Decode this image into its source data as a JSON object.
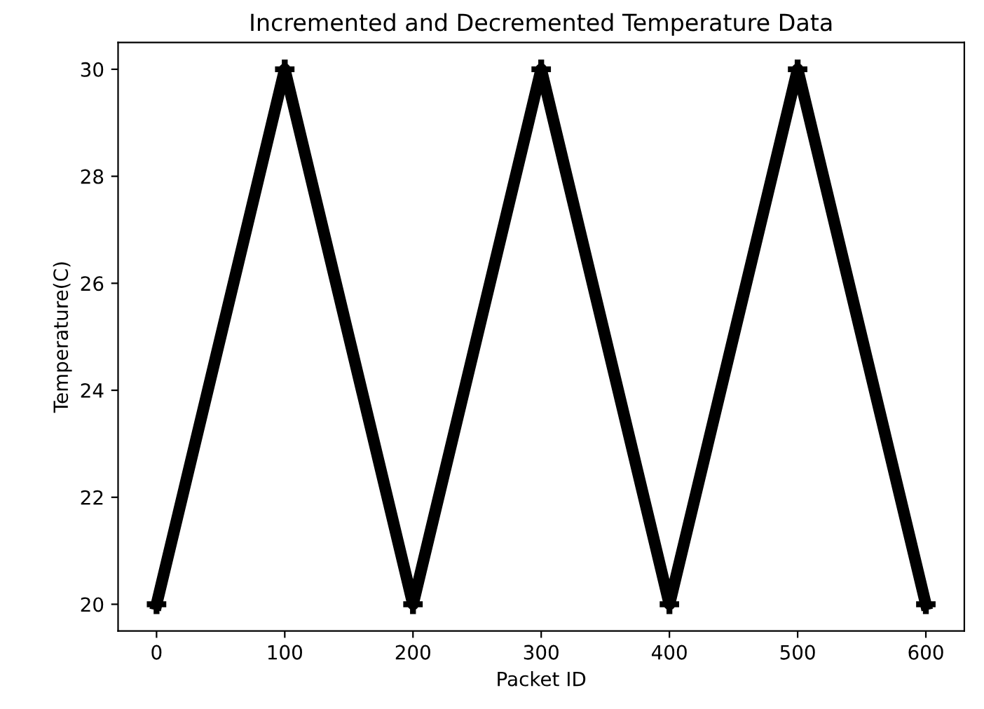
{
  "chart_data": {
    "type": "line",
    "title": "Incremented and Decremented Temperature Data",
    "xlabel": "Packet ID",
    "ylabel": "Temperature(C)",
    "x": [
      0,
      100,
      200,
      300,
      400,
      500,
      600
    ],
    "series": [
      {
        "color": "#000000",
        "values": [
          20,
          30,
          20,
          30,
          20,
          30,
          20
        ]
      }
    ],
    "xlim": [
      -30,
      630
    ],
    "ylim": [
      19.5,
      30.5
    ],
    "xticks": [
      0,
      100,
      200,
      300,
      400,
      500,
      600
    ],
    "yticks": [
      20,
      22,
      24,
      26,
      28,
      30
    ],
    "marker": "cross",
    "line_style": "solid",
    "grid": false,
    "legend": false
  }
}
